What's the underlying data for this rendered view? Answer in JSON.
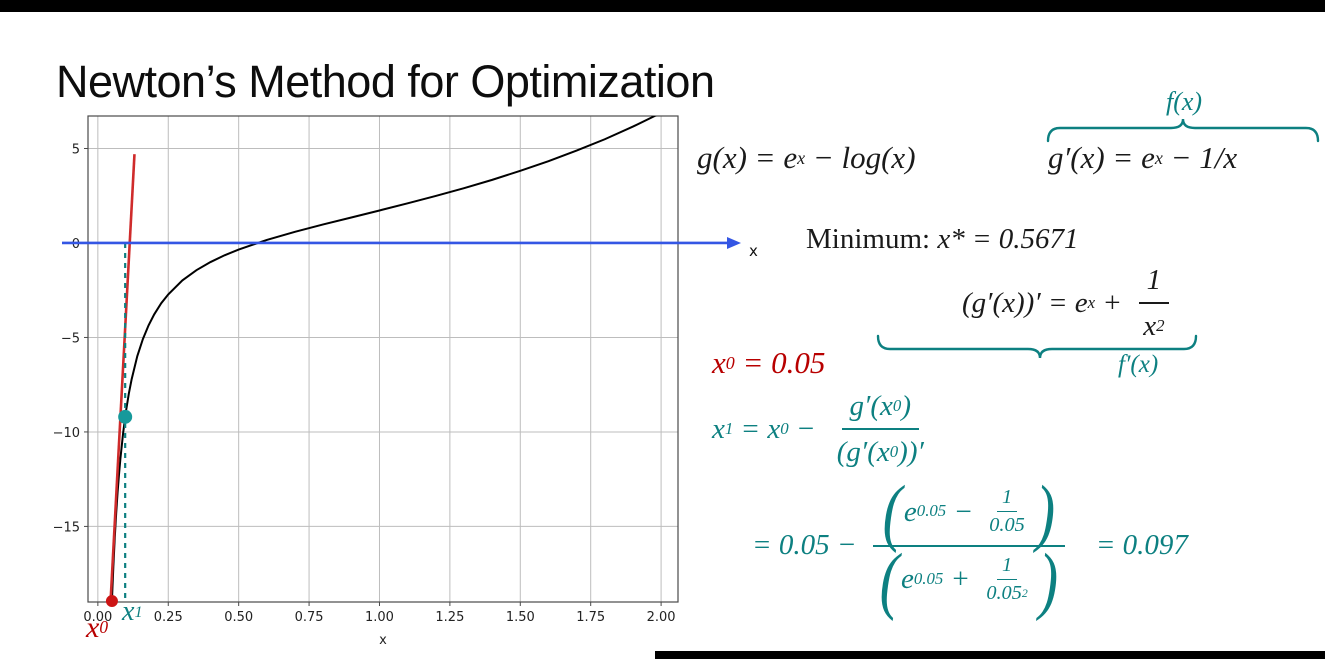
{
  "page": {
    "title": "Newton’s Method for Optimization"
  },
  "colors": {
    "red": "#b80000",
    "teal": "#0d8081",
    "blue": "#3456e4",
    "curve": "#000000",
    "grid": "#bdbdbd",
    "spine": "#4a4a4a",
    "text": "#1a1a1a"
  },
  "chart_data": {
    "type": "line",
    "title": "",
    "xlabel": "x",
    "ylabel": "",
    "grid": true,
    "xlim": [
      -0.035,
      2.06
    ],
    "ylim": [
      -19.0,
      6.72
    ],
    "x_ticks": [
      "0.00",
      "0.25",
      "0.50",
      "0.75",
      "1.00",
      "1.25",
      "1.50",
      "1.75",
      "2.00"
    ],
    "x_tick_values": [
      0,
      0.25,
      0.5,
      0.75,
      1.0,
      1.25,
      1.5,
      1.75,
      2.0
    ],
    "y_ticks": [
      "5",
      "0",
      "−5",
      "−10",
      "−15"
    ],
    "y_tick_values": [
      5,
      0,
      -5,
      -10,
      -15
    ],
    "minimum_x": 0.5671,
    "series": [
      {
        "id": "g-prime-curve",
        "name": "g'(x) = e^x − 1/x",
        "color": "#000000",
        "width": 2,
        "points": [
          [
            0.0499,
            -19.0
          ],
          [
            0.052,
            -18.18
          ],
          [
            0.055,
            -17.13
          ],
          [
            0.06,
            -15.6
          ],
          [
            0.065,
            -14.32
          ],
          [
            0.07,
            -13.21
          ],
          [
            0.075,
            -12.26
          ],
          [
            0.08,
            -11.42
          ],
          [
            0.09,
            -10.02
          ],
          [
            0.1,
            -8.89
          ],
          [
            0.11,
            -7.97
          ],
          [
            0.12,
            -7.21
          ],
          [
            0.14,
            -5.99
          ],
          [
            0.16,
            -5.08
          ],
          [
            0.18,
            -4.36
          ],
          [
            0.2,
            -3.78
          ],
          [
            0.225,
            -3.19
          ],
          [
            0.25,
            -2.72
          ],
          [
            0.3,
            -1.98
          ],
          [
            0.35,
            -1.44
          ],
          [
            0.4,
            -1.01
          ],
          [
            0.45,
            -0.65
          ],
          [
            0.5,
            -0.35
          ],
          [
            0.55,
            -0.09
          ],
          [
            0.6,
            0.16
          ],
          [
            0.7,
            0.59
          ],
          [
            0.8,
            0.98
          ],
          [
            0.9,
            1.35
          ],
          [
            1.0,
            1.72
          ],
          [
            1.1,
            2.1
          ],
          [
            1.2,
            2.49
          ],
          [
            1.3,
            2.9
          ],
          [
            1.4,
            3.34
          ],
          [
            1.5,
            3.82
          ],
          [
            1.6,
            4.33
          ],
          [
            1.7,
            4.89
          ],
          [
            1.8,
            5.49
          ],
          [
            1.9,
            6.16
          ],
          [
            1.95,
            6.52
          ],
          [
            2.0,
            6.89
          ],
          [
            2.05,
            7.28
          ]
        ]
      },
      {
        "id": "tangent-line",
        "name": "tangent at x0 = 0.05",
        "color": "#cf2b2b",
        "width": 2.6,
        "points": [
          [
            0.045,
            -19.0
          ],
          [
            0.13,
            4.7
          ]
        ]
      },
      {
        "id": "x1-dashed-line",
        "name": "x1 locator",
        "color": "#0d8081",
        "width": 2.2,
        "dash": "5,5",
        "points": [
          [
            0.097,
            0
          ],
          [
            0.097,
            -19.0
          ]
        ]
      }
    ],
    "markers": [
      {
        "label": "x0",
        "x": 0.05,
        "y": -18.95,
        "color": "#cc1414",
        "r": 6
      },
      {
        "label": "x1",
        "x": 0.097,
        "y": -9.2,
        "color": "#16999b",
        "r": 7
      }
    ],
    "x_axis_arrow": {
      "y": 0,
      "color": "#3456e4",
      "label": "x"
    }
  },
  "math": {
    "equations": [
      {
        "id": "eq-g",
        "color": "#1a1a1a",
        "tokens": [
          {
            "text": "g(x) = e"
          },
          {
            "sup": "x"
          },
          {
            "text": " − log(x)"
          }
        ]
      },
      {
        "id": "eq-gprime",
        "color": "#1a1a1a",
        "tokens": [
          {
            "text": "g′(x) = e"
          },
          {
            "sup": "x"
          },
          {
            "text": " − 1/x"
          }
        ]
      },
      {
        "id": "fx-label",
        "color": "#0d8081",
        "tokens": [
          {
            "text": "f(x)"
          }
        ]
      },
      {
        "id": "minimum",
        "color": "#1a1a1a",
        "tokens": [
          {
            "text": "Minimum: ",
            "up": true
          },
          {
            "text": "x* = 0.5671"
          }
        ]
      },
      {
        "id": "eq-second",
        "color": "#1a1a1a",
        "tokens": [
          {
            "text": "(g′(x))′ = e"
          },
          {
            "sup": "x"
          },
          {
            "text": " + "
          },
          {
            "frac": {
              "num": [
                {
                  "text": "1"
                }
              ],
              "den": [
                {
                  "text": "x"
                },
                {
                  "sup": "2"
                }
              ]
            }
          }
        ]
      },
      {
        "id": "fpx-label",
        "color": "#0d8081",
        "tokens": [
          {
            "text": "f′(x)"
          }
        ]
      },
      {
        "id": "eq-x0",
        "color": "#b80000",
        "tokens": [
          {
            "text": "x"
          },
          {
            "sub": "0"
          },
          {
            "text": " = 0.05"
          }
        ]
      },
      {
        "id": "eq-x1",
        "color": "#0d8081",
        "tokens": [
          {
            "text": "x"
          },
          {
            "sub": "1"
          },
          {
            "text": " = x"
          },
          {
            "sub": "0"
          },
          {
            "text": " − "
          },
          {
            "frac": {
              "num": [
                {
                  "text": "g′(x"
                },
                {
                  "sub": "0"
                },
                {
                  "text": ")"
                }
              ],
              "den": [
                {
                  "text": "(g′(x"
                },
                {
                  "sub": "0"
                },
                {
                  "text": "))′"
                }
              ]
            }
          }
        ]
      },
      {
        "id": "eq-iter",
        "color": "#0d8081",
        "tokens": [
          {
            "text": "= 0.05 − "
          },
          {
            "frac": {
              "num": [
                {
                  "big": "("
                },
                {
                  "text": "e"
                },
                {
                  "sup": "0.05"
                },
                {
                  "text": " − "
                },
                {
                  "frac": {
                    "num": [
                      {
                        "text": "1"
                      }
                    ],
                    "den": [
                      {
                        "text": "0.05"
                      }
                    ]
                  }
                },
                {
                  "big": ")"
                }
              ],
              "den": [
                {
                  "big": "("
                },
                {
                  "text": "e"
                },
                {
                  "sup": "0.05"
                },
                {
                  "text": " + "
                },
                {
                  "frac": {
                    "num": [
                      {
                        "text": "1"
                      }
                    ],
                    "den": [
                      {
                        "text": "0.05"
                      },
                      {
                        "sup": "2"
                      }
                    ]
                  }
                },
                {
                  "big": ")"
                }
              ]
            }
          },
          {
            "text": "   = 0.097"
          }
        ]
      },
      {
        "id": "label-x0",
        "color": "#b80000",
        "tokens": [
          {
            "text": "x"
          },
          {
            "sub": "0"
          }
        ]
      },
      {
        "id": "label-x1",
        "color": "#0d8081",
        "tokens": [
          {
            "text": "x"
          },
          {
            "sub": "1"
          }
        ]
      }
    ]
  }
}
